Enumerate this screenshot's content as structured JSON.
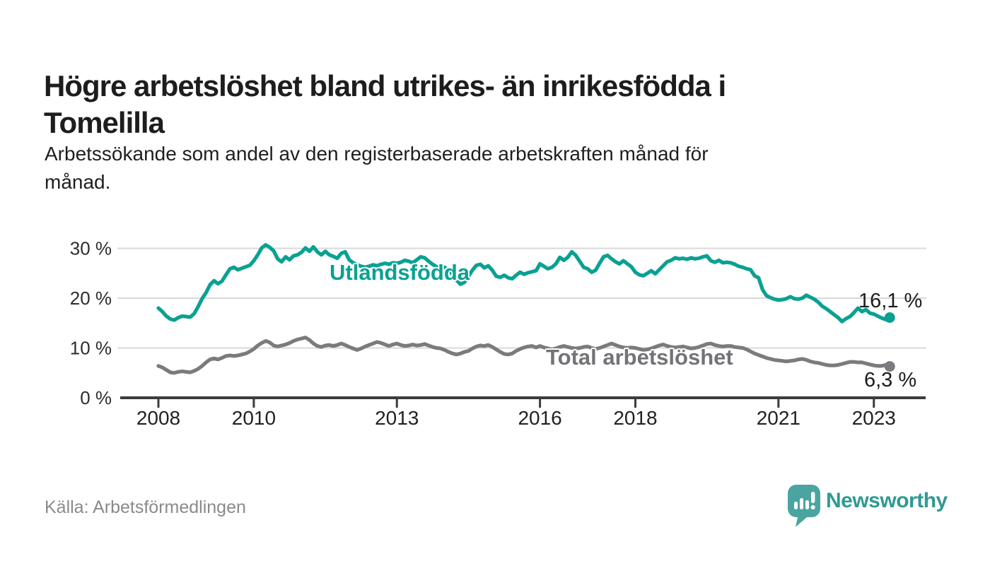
{
  "title_lines": [
    "Högre arbetslöshet bland utrikes- än inrikesfödda i",
    "Tomelilla"
  ],
  "subtitle_lines": [
    "Arbetssökande som andel av den registerbaserade arbetskraften månad för",
    "månad."
  ],
  "source": "Källa: Arbetsförmedlingen",
  "logo": {
    "text": "Newsworthy",
    "icon": "speech-bubble-bar-chart-icon"
  },
  "colors": {
    "teal": "#0aa192",
    "gray": "#7b7b7f",
    "grid": "#d9d9d9",
    "axis": "#3c3c3e",
    "tick_text": "#2d2d2d",
    "x_tick_text": "#222222",
    "value_text": "#1c1c1c",
    "label_gray": "#737377",
    "source_text": "#8a8a8e",
    "logo_teal": "#4aa5a0",
    "logo_text_color": "#2f9a93"
  },
  "chart_data": {
    "type": "line",
    "title": "Högre arbetslöshet bland utrikes- än inrikesfödda i Tomelilla",
    "subtitle": "Arbetssökande som andel av den registerbaserade arbetskraften månad för månad.",
    "x_unit": "month",
    "x_start": "2008-01",
    "x_end": "2023-05",
    "ylim": [
      0,
      32
    ],
    "grid": "horizontal",
    "legend_position": "inline-labels",
    "x_ticks": [
      {
        "year": 2008,
        "label": "2008"
      },
      {
        "year": 2010,
        "label": "2010"
      },
      {
        "year": 2013,
        "label": "2013"
      },
      {
        "year": 2016,
        "label": "2016"
      },
      {
        "year": 2018,
        "label": "2018"
      },
      {
        "year": 2021,
        "label": "2021"
      },
      {
        "year": 2023,
        "label": "2023"
      }
    ],
    "y_ticks": [
      {
        "value": 30,
        "label": "30 %"
      },
      {
        "value": 20,
        "label": "20 %"
      },
      {
        "value": 10,
        "label": "10 %"
      },
      {
        "value": 0,
        "label": "0 %"
      }
    ],
    "series": [
      {
        "name": "Utlandsfödda",
        "color": "#0aa192",
        "end_label": "16,1 %",
        "end_value": 16.1,
        "values": [
          18.0,
          17.3,
          16.4,
          15.8,
          15.6,
          16.1,
          16.4,
          16.3,
          16.2,
          16.9,
          18.3,
          19.9,
          21.1,
          22.7,
          23.5,
          22.9,
          23.4,
          24.7,
          25.9,
          26.2,
          25.7,
          26.0,
          26.3,
          26.6,
          27.5,
          28.7,
          30.1,
          30.7,
          30.2,
          29.5,
          27.9,
          27.3,
          28.3,
          27.7,
          28.5,
          28.7,
          29.2,
          30.1,
          29.4,
          30.3,
          29.3,
          28.7,
          29.4,
          28.7,
          28.4,
          28.0,
          29.0,
          29.3,
          27.7,
          27.1,
          26.7,
          26.4,
          26.2,
          26.4,
          26.7,
          26.5,
          26.8,
          27.0,
          26.8,
          27.1,
          27.0,
          27.2,
          27.6,
          27.4,
          27.1,
          27.7,
          28.3,
          28.1,
          27.4,
          26.8,
          26.3,
          26.0,
          26.2,
          25.6,
          24.8,
          23.6,
          22.8,
          23.2,
          24.4,
          25.6,
          26.6,
          26.8,
          26.1,
          26.5,
          25.6,
          24.4,
          24.2,
          24.6,
          24.1,
          23.9,
          24.6,
          25.2,
          24.8,
          25.1,
          25.3,
          25.5,
          26.9,
          26.4,
          25.9,
          26.2,
          26.9,
          28.2,
          27.6,
          28.2,
          29.3,
          28.6,
          27.4,
          26.2,
          25.9,
          25.2,
          25.6,
          27.0,
          28.3,
          28.6,
          27.9,
          27.3,
          26.9,
          27.5,
          26.9,
          26.3,
          25.2,
          24.7,
          24.5,
          25.0,
          25.5,
          24.9,
          25.7,
          26.5,
          27.3,
          27.6,
          28.1,
          27.9,
          28.0,
          27.8,
          28.1,
          27.9,
          28.0,
          28.3,
          28.5,
          27.5,
          27.2,
          27.6,
          27.1,
          27.2,
          27.1,
          26.8,
          26.4,
          26.2,
          25.9,
          25.7,
          24.5,
          24.1,
          21.7,
          20.5,
          20.1,
          19.8,
          19.6,
          19.7,
          19.9,
          20.3,
          19.9,
          19.8,
          20.0,
          20.6,
          20.2,
          19.8,
          19.2,
          18.4,
          17.9,
          17.3,
          16.7,
          16.1,
          15.3,
          15.9,
          16.3,
          17.1,
          18.0,
          17.3,
          17.7,
          17.0,
          16.8,
          16.4,
          16.0,
          15.7,
          16.1
        ]
      },
      {
        "name": "Total arbetslöshet",
        "color": "#7b7b7f",
        "end_label": "6,3 %",
        "end_value": 6.3,
        "values": [
          6.4,
          6.1,
          5.6,
          5.1,
          5.0,
          5.2,
          5.3,
          5.2,
          5.1,
          5.4,
          5.8,
          6.4,
          7.1,
          7.7,
          7.9,
          7.7,
          8.0,
          8.4,
          8.5,
          8.4,
          8.5,
          8.7,
          8.9,
          9.3,
          9.8,
          10.5,
          11.0,
          11.4,
          11.1,
          10.5,
          10.3,
          10.5,
          10.7,
          11.0,
          11.4,
          11.7,
          11.9,
          12.1,
          11.6,
          10.9,
          10.4,
          10.2,
          10.5,
          10.6,
          10.4,
          10.6,
          10.9,
          10.6,
          10.2,
          9.9,
          9.6,
          9.9,
          10.3,
          10.6,
          10.9,
          11.2,
          11.0,
          10.7,
          10.4,
          10.7,
          10.9,
          10.6,
          10.4,
          10.5,
          10.7,
          10.5,
          10.6,
          10.8,
          10.5,
          10.2,
          10.0,
          9.9,
          9.6,
          9.2,
          8.9,
          8.7,
          8.9,
          9.2,
          9.4,
          9.9,
          10.3,
          10.5,
          10.4,
          10.6,
          10.2,
          9.7,
          9.2,
          8.8,
          8.7,
          8.9,
          9.4,
          9.8,
          10.1,
          10.3,
          10.4,
          10.1,
          10.4,
          10.1,
          9.9,
          9.7,
          9.9,
          10.2,
          10.4,
          10.2,
          10.0,
          9.9,
          10.0,
          10.2,
          10.3,
          10.0,
          9.8,
          10.0,
          10.3,
          10.6,
          10.9,
          10.6,
          10.3,
          10.1,
          10.0,
          10.1,
          10.0,
          9.8,
          9.6,
          9.7,
          9.9,
          10.2,
          10.5,
          10.7,
          10.4,
          10.2,
          10.1,
          10.2,
          10.3,
          10.1,
          9.9,
          10.0,
          10.2,
          10.5,
          10.8,
          10.9,
          10.6,
          10.4,
          10.3,
          10.4,
          10.4,
          10.2,
          10.1,
          10.0,
          9.7,
          9.3,
          8.9,
          8.6,
          8.3,
          8.0,
          7.8,
          7.6,
          7.5,
          7.4,
          7.3,
          7.4,
          7.5,
          7.7,
          7.8,
          7.6,
          7.3,
          7.1,
          7.0,
          6.8,
          6.6,
          6.5,
          6.5,
          6.6,
          6.8,
          7.0,
          7.2,
          7.2,
          7.1,
          7.1,
          6.9,
          6.7,
          6.5,
          6.4,
          6.4,
          6.6,
          6.3
        ]
      }
    ]
  }
}
